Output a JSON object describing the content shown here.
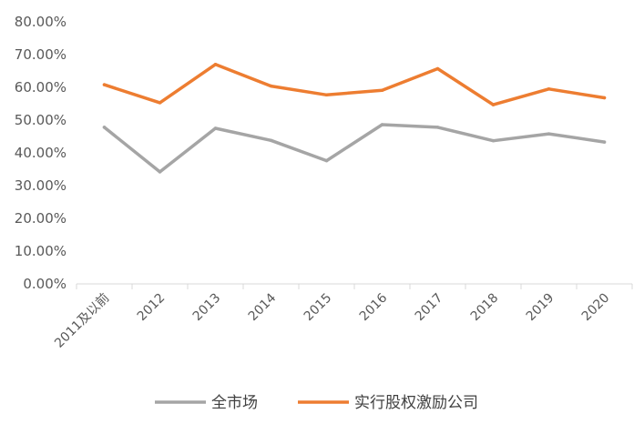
{
  "chart_data": {
    "type": "line",
    "categories": [
      "2011及以前",
      "2012",
      "2013",
      "2014",
      "2015",
      "2016",
      "2017",
      "2018",
      "2019",
      "2020"
    ],
    "series": [
      {
        "name": "全市场",
        "color": "#a5a5a5",
        "values": [
          47.8,
          34.2,
          47.5,
          43.8,
          37.6,
          48.6,
          47.8,
          43.7,
          45.8,
          43.3
        ]
      },
      {
        "name": "实行股权激励公司",
        "color": "#ed7d31",
        "values": [
          60.8,
          55.3,
          67.0,
          60.4,
          57.7,
          59.1,
          65.7,
          54.7,
          59.5,
          56.8
        ]
      }
    ],
    "ylim": [
      0,
      80
    ],
    "yticks": [
      "0.00%",
      "10.00%",
      "20.00%",
      "30.00%",
      "40.00%",
      "50.00%",
      "60.00%",
      "70.00%",
      "80.00%"
    ],
    "title": "",
    "xlabel": "",
    "ylabel": "",
    "grid": false,
    "legend_position": "bottom"
  }
}
